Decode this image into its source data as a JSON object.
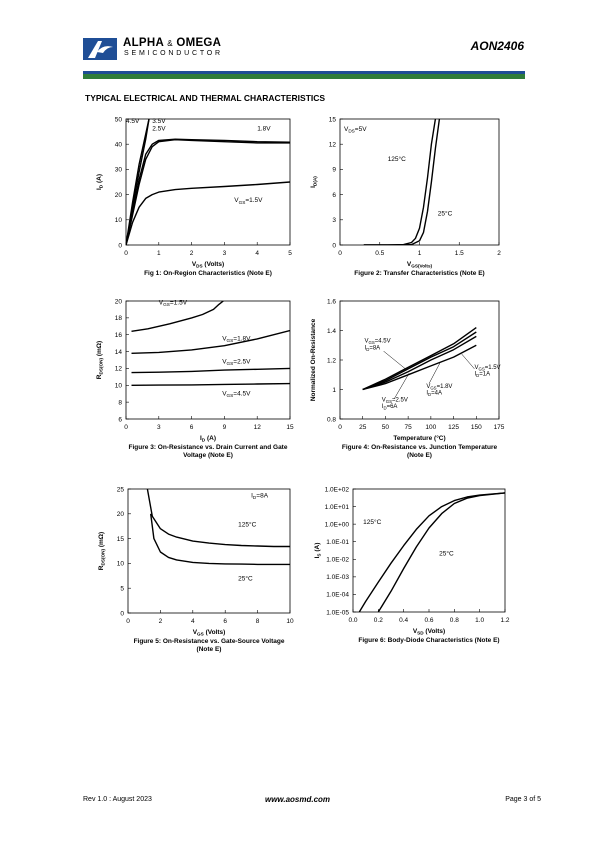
{
  "header": {
    "brand_main": "ALPHA",
    "brand_amp": "&",
    "brand_tail": "OMEGA",
    "brand_sub": "SEMICONDUCTOR",
    "part_number": "AON2406",
    "colors": {
      "blue": "#1f4e96",
      "green": "#2f7d3a"
    }
  },
  "section_title": "TYPICAL ELECTRICAL AND THERMAL CHARACTERISTICS",
  "footer": {
    "revision": "Rev 1.0 : August 2023",
    "website": "www.aosmd.com",
    "page": "Page 3 of 5"
  },
  "chart_data": [
    {
      "type": "line",
      "caption": "Fig 1: On-Region Characteristics (Note E)",
      "xlabel": "V_DS (Volts)",
      "ylabel": "I_D (A)",
      "xlim": [
        0,
        5
      ],
      "ylim": [
        0,
        50
      ],
      "xticks": [
        "0",
        "1",
        "2",
        "3",
        "4",
        "5"
      ],
      "yticks": [
        "0",
        "10",
        "20",
        "30",
        "40",
        "50"
      ],
      "series": [
        {
          "name": "4.5V",
          "x": [
            0,
            0.2,
            0.4,
            0.6,
            0.7
          ],
          "y": [
            0,
            17,
            32,
            44,
            50
          ]
        },
        {
          "name": "3.5V",
          "x": [
            0,
            0.2,
            0.4,
            0.6,
            0.7
          ],
          "y": [
            0,
            15,
            29,
            42,
            50
          ]
        },
        {
          "name": "2.5V",
          "x": [
            0,
            0.2,
            0.4,
            0.6,
            0.8,
            1.0,
            1.5,
            2,
            3,
            4,
            5
          ],
          "y": [
            0,
            13,
            26,
            36,
            40,
            41.5,
            42,
            41.8,
            41.5,
            41,
            40.8
          ]
        },
        {
          "name": "1.8V",
          "x": [
            0,
            0.2,
            0.4,
            0.6,
            0.8,
            1.0,
            1.5,
            2,
            3,
            4,
            5
          ],
          "y": [
            0,
            12,
            24,
            34,
            39,
            41,
            41.8,
            41.5,
            41,
            40.5,
            40.5
          ]
        },
        {
          "name": "V_GS=1.5V",
          "x": [
            0,
            0.2,
            0.4,
            0.6,
            0.8,
            1.0,
            1.5,
            2,
            3,
            4,
            5
          ],
          "y": [
            0,
            9,
            15,
            18.5,
            20,
            21,
            22,
            22.5,
            23.2,
            24,
            25
          ]
        }
      ]
    },
    {
      "type": "line",
      "caption": "Figure 2: Transfer Characteristics (Note E)",
      "xlabel": "V_GS(Volts)",
      "ylabel": "I_D(A)",
      "xlim": [
        0,
        2
      ],
      "ylim": [
        0,
        15
      ],
      "xticks": [
        "0",
        "0.5",
        "1",
        "1.5",
        "2"
      ],
      "yticks": [
        "0",
        "3",
        "6",
        "9",
        "12",
        "15"
      ],
      "annotations": [
        "V_DS=5V"
      ],
      "series": [
        {
          "name": "125°C",
          "x": [
            0.3,
            0.6,
            0.8,
            0.9,
            0.95,
            1.0,
            1.05,
            1.1,
            1.15,
            1.2
          ],
          "y": [
            0,
            0,
            0.05,
            0.3,
            0.8,
            2,
            4.5,
            8,
            12,
            15
          ]
        },
        {
          "name": "25°C",
          "x": [
            0.3,
            0.7,
            0.9,
            1.0,
            1.05,
            1.1,
            1.15,
            1.2,
            1.25
          ],
          "y": [
            0,
            0,
            0.05,
            0.5,
            1.5,
            4,
            7.5,
            11.5,
            15
          ]
        }
      ]
    },
    {
      "type": "line",
      "caption": "Figure 3: On-Resistance vs. Drain Current and Gate Voltage (Note E)",
      "xlabel": "I_D (A)",
      "ylabel": "R_DS(ON) (mΩ)",
      "xlim": [
        0,
        15
      ],
      "ylim": [
        6,
        20
      ],
      "xticks": [
        "0",
        "3",
        "6",
        "9",
        "12",
        "15"
      ],
      "yticks": [
        "6",
        "8",
        "10",
        "12",
        "14",
        "16",
        "18",
        "20"
      ],
      "series": [
        {
          "name": "V_GS=1.5V",
          "x": [
            0.5,
            2,
            4,
            6,
            7,
            8,
            8.5,
            8.9
          ],
          "y": [
            16.4,
            16.7,
            17.3,
            18,
            18.4,
            19,
            19.6,
            20
          ]
        },
        {
          "name": "V_GS=1.8V",
          "x": [
            0.5,
            3,
            6,
            9,
            12,
            15
          ],
          "y": [
            13.8,
            13.9,
            14.2,
            14.7,
            15.5,
            16.5
          ]
        },
        {
          "name": "V_GS=2.5V",
          "x": [
            0.5,
            3,
            6,
            9,
            12,
            15
          ],
          "y": [
            11.5,
            11.55,
            11.65,
            11.8,
            11.9,
            12.0
          ]
        },
        {
          "name": "V_GS=4.5V",
          "x": [
            0.5,
            3,
            6,
            9,
            12,
            15
          ],
          "y": [
            10.0,
            10.02,
            10.05,
            10.1,
            10.15,
            10.2
          ]
        }
      ]
    },
    {
      "type": "line",
      "caption": "Figure 4: On-Resistance vs. Junction Temperature (Note E)",
      "xlabel": "Temperature (°C)",
      "ylabel": "Normalized On-Resistance",
      "xlim": [
        0,
        175
      ],
      "ylim": [
        0.8,
        1.6
      ],
      "xticks": [
        "0",
        "25",
        "50",
        "75",
        "100",
        "125",
        "150",
        "175"
      ],
      "yticks": [
        "0.8",
        "1",
        "1.2",
        "1.4",
        "1.6"
      ],
      "series": [
        {
          "name": "V_GS=4.5V, I_D=8A",
          "x": [
            25,
            50,
            75,
            100,
            125,
            150
          ],
          "y": [
            1,
            1.07,
            1.15,
            1.23,
            1.31,
            1.42
          ]
        },
        {
          "name": "V_GS=2.5V, I_D=6A",
          "x": [
            25,
            50,
            75,
            100,
            125,
            150
          ],
          "y": [
            1,
            1.06,
            1.14,
            1.22,
            1.29,
            1.39
          ]
        },
        {
          "name": "V_GS=1.8V, I_D=4A",
          "x": [
            25,
            50,
            75,
            100,
            125,
            150
          ],
          "y": [
            1,
            1.05,
            1.12,
            1.2,
            1.27,
            1.36
          ]
        },
        {
          "name": "V_GS=1.5V, I_D=1A",
          "x": [
            25,
            50,
            75,
            100,
            125,
            150
          ],
          "y": [
            1,
            1.04,
            1.1,
            1.16,
            1.22,
            1.3
          ]
        }
      ],
      "labels": [
        "V_GS=4.5V",
        "I_D=8A",
        "V_GS=2.5V",
        "I_D=6A",
        "V_GS=1.8V",
        "I_D=4A",
        "V_GS=1.5V",
        "I_D=1A"
      ]
    },
    {
      "type": "line",
      "caption": "Figure 5: On-Resistance vs. Gate-Source Voltage (Note E)",
      "xlabel": "V_GS (Volts)",
      "ylabel": "R_DS(ON) (mΩ)",
      "xlim": [
        0,
        10
      ],
      "ylim": [
        0,
        25
      ],
      "xticks": [
        "0",
        "2",
        "4",
        "6",
        "8",
        "10"
      ],
      "yticks": [
        "0",
        "5",
        "10",
        "15",
        "20",
        "25"
      ],
      "annotations": [
        "I_D=8A"
      ],
      "series": [
        {
          "name": "125°C",
          "x": [
            1.2,
            1.5,
            2,
            2.5,
            3,
            4,
            5,
            6,
            7,
            8,
            9,
            10
          ],
          "y": [
            25,
            19.5,
            17,
            15.9,
            15.3,
            14.5,
            14.1,
            13.8,
            13.6,
            13.5,
            13.4,
            13.4
          ]
        },
        {
          "name": "25°C",
          "x": [
            1.4,
            1.6,
            2,
            2.5,
            3,
            4,
            5,
            6,
            7,
            8,
            9,
            10
          ],
          "y": [
            20,
            15,
            12.3,
            11.2,
            10.7,
            10.2,
            10,
            9.9,
            9.85,
            9.8,
            9.8,
            9.8
          ]
        }
      ]
    },
    {
      "type": "line",
      "caption": "Figure 6: Body-Diode Characteristics (Note E)",
      "xlabel": "V_SD (Volts)",
      "ylabel": "I_S (A)",
      "xlim": [
        0,
        1.2
      ],
      "ylim": [
        1e-05,
        100
      ],
      "yscale": "log",
      "xticks": [
        "0.0",
        "0.2",
        "0.4",
        "0.6",
        "0.8",
        "1.0",
        "1.2"
      ],
      "yticks": [
        "1.0E-05",
        "1.0E-04",
        "1.0E-03",
        "1.0E-02",
        "1.0E-01",
        "1.0E+00",
        "1.0E+01",
        "1.0E+02"
      ],
      "series": [
        {
          "name": "125°C",
          "x": [
            0.05,
            0.1,
            0.2,
            0.3,
            0.4,
            0.5,
            0.6,
            0.7,
            0.8,
            0.9,
            1.0,
            1.2
          ],
          "y": [
            1e-05,
            4e-05,
            0.0005,
            0.006,
            0.06,
            0.5,
            3,
            10,
            22,
            35,
            45,
            60
          ]
        },
        {
          "name": "25°C",
          "x": [
            0.2,
            0.3,
            0.4,
            0.5,
            0.6,
            0.7,
            0.8,
            0.9,
            1.0,
            1.2
          ],
          "y": [
            1e-05,
            0.00015,
            0.003,
            0.05,
            0.6,
            4,
            15,
            30,
            42,
            60
          ]
        }
      ]
    }
  ]
}
